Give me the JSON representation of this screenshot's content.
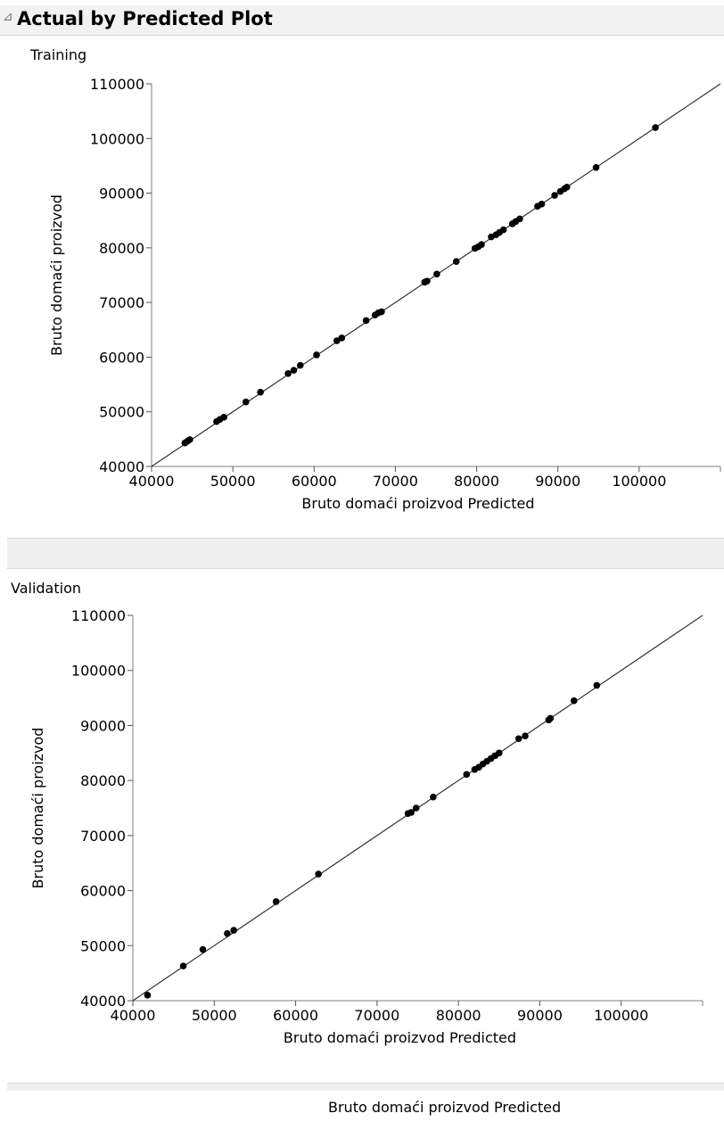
{
  "header": {
    "title": "Actual by Predicted Plot"
  },
  "bottom_label": "Bruto domaći proizvod Predicted",
  "chart_data": [
    {
      "type": "scatter",
      "label": "Training",
      "xlabel": "Bruto domaći proizvod Predicted",
      "ylabel": "Bruto domaći proizvod",
      "xlim": [
        40000,
        110000
      ],
      "ylim": [
        40000,
        110000
      ],
      "xticks": [
        40000,
        50000,
        60000,
        70000,
        80000,
        90000,
        100000
      ],
      "yticks": [
        40000,
        50000,
        60000,
        70000,
        80000,
        90000,
        100000,
        110000
      ],
      "reference_line": "y = x",
      "grid": false,
      "points": [
        [
          44100,
          44300
        ],
        [
          44400,
          44600
        ],
        [
          44700,
          44900
        ],
        [
          48000,
          48200
        ],
        [
          48400,
          48600
        ],
        [
          48900,
          49000
        ],
        [
          51600,
          51800
        ],
        [
          53400,
          53600
        ],
        [
          56800,
          57000
        ],
        [
          57500,
          57600
        ],
        [
          58300,
          58500
        ],
        [
          60300,
          60400
        ],
        [
          62800,
          63000
        ],
        [
          63400,
          63500
        ],
        [
          66400,
          66700
        ],
        [
          67500,
          67700
        ],
        [
          67900,
          68100
        ],
        [
          68300,
          68300
        ],
        [
          73600,
          73700
        ],
        [
          73900,
          73900
        ],
        [
          75100,
          75200
        ],
        [
          77500,
          77500
        ],
        [
          79800,
          79900
        ],
        [
          80200,
          80200
        ],
        [
          80600,
          80600
        ],
        [
          81800,
          82000
        ],
        [
          82400,
          82400
        ],
        [
          82800,
          82800
        ],
        [
          83300,
          83300
        ],
        [
          84400,
          84400
        ],
        [
          84800,
          84800
        ],
        [
          85300,
          85300
        ],
        [
          87500,
          87600
        ],
        [
          88000,
          88000
        ],
        [
          89600,
          89600
        ],
        [
          90300,
          90300
        ],
        [
          90800,
          90800
        ],
        [
          91100,
          91100
        ],
        [
          94700,
          94700
        ],
        [
          102000,
          102000
        ]
      ]
    },
    {
      "type": "scatter",
      "label": "Validation",
      "xlabel": "Bruto domaći proizvod Predicted",
      "ylabel": "Bruto domaći proizvod",
      "xlim": [
        40000,
        110000
      ],
      "ylim": [
        40000,
        110000
      ],
      "xticks": [
        40000,
        50000,
        60000,
        70000,
        80000,
        90000,
        100000
      ],
      "yticks": [
        40000,
        50000,
        60000,
        70000,
        80000,
        90000,
        100000,
        110000
      ],
      "reference_line": "y = x",
      "grid": false,
      "points": [
        [
          41800,
          41000
        ],
        [
          46200,
          46300
        ],
        [
          48600,
          49300
        ],
        [
          51600,
          52200
        ],
        [
          52400,
          52800
        ],
        [
          57600,
          58000
        ],
        [
          62800,
          63000
        ],
        [
          73800,
          74000
        ],
        [
          74200,
          74200
        ],
        [
          74800,
          75000
        ],
        [
          76900,
          77000
        ],
        [
          81000,
          81100
        ],
        [
          82000,
          82000
        ],
        [
          82500,
          82400
        ],
        [
          83000,
          83000
        ],
        [
          83500,
          83500
        ],
        [
          84000,
          84000
        ],
        [
          84500,
          84500
        ],
        [
          85000,
          85000
        ],
        [
          87400,
          87600
        ],
        [
          88200,
          88100
        ],
        [
          91100,
          91000
        ],
        [
          91300,
          91300
        ],
        [
          94200,
          94500
        ],
        [
          97000,
          97300
        ]
      ]
    }
  ]
}
